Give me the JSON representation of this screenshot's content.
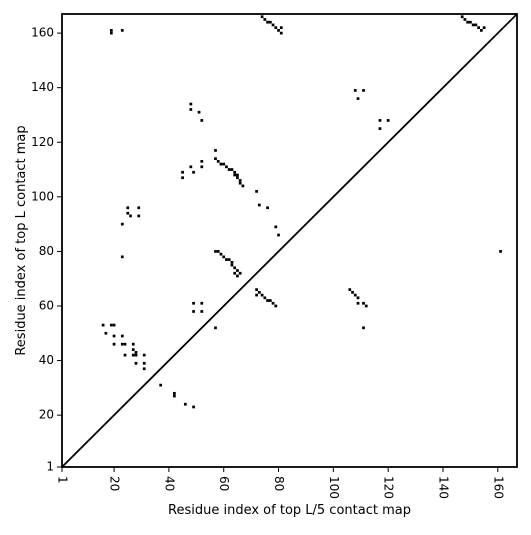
{
  "chart_data": {
    "type": "heatmap",
    "title": "",
    "xlabel": "Residue index of top L/5 contact map",
    "ylabel": "Residue index of top L contact map",
    "xlim": [
      1,
      167
    ],
    "ylim": [
      1,
      167
    ],
    "xticks": [
      1,
      20,
      40,
      60,
      80,
      100,
      120,
      140,
      160
    ],
    "yticks": [
      1,
      20,
      40,
      60,
      80,
      100,
      120,
      140,
      160
    ],
    "xtick_labels": [
      "1",
      "20",
      "40",
      "60",
      "80",
      "100",
      "120",
      "140",
      "160"
    ],
    "ytick_labels": [
      "1",
      "20",
      "40",
      "60",
      "80",
      "100",
      "120",
      "140",
      "160"
    ],
    "xtick_rotation_deg": -90,
    "diagonal": true,
    "grid": false,
    "color": "#000000",
    "contacts": [
      [
        19,
        160
      ],
      [
        19,
        161
      ],
      [
        23,
        161
      ],
      [
        74,
        166
      ],
      [
        75,
        165
      ],
      [
        76,
        164
      ],
      [
        77,
        164
      ],
      [
        78,
        163
      ],
      [
        79,
        162
      ],
      [
        80,
        161
      ],
      [
        81,
        160
      ],
      [
        81,
        162
      ],
      [
        147,
        166
      ],
      [
        148,
        165
      ],
      [
        149,
        164
      ],
      [
        150,
        164
      ],
      [
        151,
        163
      ],
      [
        152,
        163
      ],
      [
        153,
        162
      ],
      [
        154,
        161
      ],
      [
        155,
        162
      ],
      [
        48,
        134
      ],
      [
        48,
        132
      ],
      [
        51,
        131
      ],
      [
        52,
        128
      ],
      [
        108,
        139
      ],
      [
        111,
        139
      ],
      [
        109,
        136
      ],
      [
        117,
        128
      ],
      [
        120,
        128
      ],
      [
        117,
        125
      ],
      [
        57,
        117
      ],
      [
        52,
        113
      ],
      [
        52,
        111
      ],
      [
        48,
        111
      ],
      [
        49,
        109
      ],
      [
        45,
        109
      ],
      [
        45,
        107
      ],
      [
        57,
        114
      ],
      [
        58,
        113
      ],
      [
        59,
        112
      ],
      [
        60,
        112
      ],
      [
        61,
        111
      ],
      [
        62,
        110
      ],
      [
        63,
        110
      ],
      [
        64,
        109
      ],
      [
        64,
        108
      ],
      [
        65,
        108
      ],
      [
        65,
        107
      ],
      [
        66,
        106
      ],
      [
        66,
        105
      ],
      [
        67,
        104
      ],
      [
        72,
        102
      ],
      [
        73,
        97
      ],
      [
        76,
        96
      ],
      [
        79,
        89
      ],
      [
        80,
        86
      ],
      [
        25,
        96
      ],
      [
        25,
        94
      ],
      [
        26,
        93
      ],
      [
        29,
        96
      ],
      [
        29,
        93
      ],
      [
        23,
        90
      ],
      [
        57,
        80
      ],
      [
        58,
        80
      ],
      [
        59,
        79
      ],
      [
        60,
        78
      ],
      [
        61,
        77
      ],
      [
        62,
        77
      ],
      [
        63,
        76
      ],
      [
        63,
        75
      ],
      [
        64,
        74
      ],
      [
        65,
        73
      ],
      [
        64,
        72
      ],
      [
        66,
        72
      ],
      [
        65,
        71
      ],
      [
        23,
        78
      ],
      [
        161,
        80
      ],
      [
        72,
        66
      ],
      [
        72,
        64
      ],
      [
        73,
        65
      ],
      [
        74,
        64
      ],
      [
        75,
        63
      ],
      [
        76,
        62
      ],
      [
        77,
        62
      ],
      [
        78,
        61
      ],
      [
        79,
        60
      ],
      [
        106,
        66
      ],
      [
        107,
        65
      ],
      [
        108,
        64
      ],
      [
        109,
        63
      ],
      [
        109,
        61
      ],
      [
        111,
        61
      ],
      [
        112,
        60
      ],
      [
        111,
        52
      ],
      [
        49,
        61
      ],
      [
        49,
        58
      ],
      [
        52,
        61
      ],
      [
        52,
        58
      ],
      [
        57,
        52
      ],
      [
        16,
        53
      ],
      [
        19,
        53
      ],
      [
        20,
        53
      ],
      [
        17,
        50
      ],
      [
        20,
        49
      ],
      [
        23,
        49
      ],
      [
        20,
        46
      ],
      [
        23,
        46
      ],
      [
        24,
        46
      ],
      [
        24,
        42
      ],
      [
        27,
        46
      ],
      [
        27,
        44
      ],
      [
        27,
        42
      ],
      [
        28,
        43
      ],
      [
        28,
        42
      ],
      [
        31,
        42
      ],
      [
        28,
        39
      ],
      [
        31,
        39
      ],
      [
        31,
        37
      ],
      [
        37,
        31
      ],
      [
        42,
        28
      ],
      [
        42,
        27
      ],
      [
        46,
        24
      ],
      [
        49,
        23
      ]
    ]
  }
}
